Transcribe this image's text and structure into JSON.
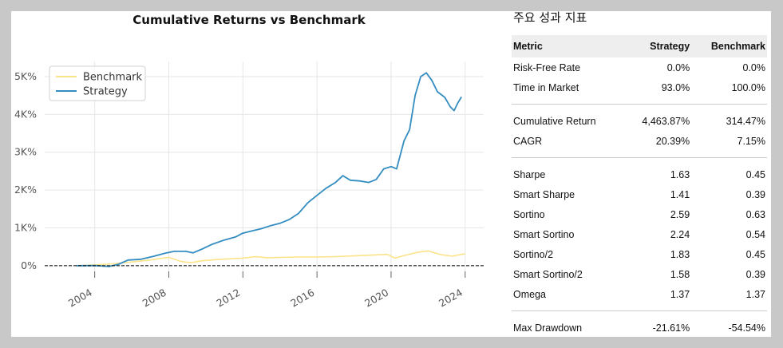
{
  "chart_data": {
    "type": "line",
    "title": "Cumulative Returns vs Benchmark",
    "xlabel": "",
    "ylabel": "",
    "x_ticks": [
      "2004",
      "2008",
      "2012",
      "2016",
      "2020",
      "2024"
    ],
    "y_ticks": [
      "0%",
      "1K%",
      "2K%",
      "3K%",
      "4K%",
      "5K%"
    ],
    "xlim": [
      2001.3,
      2025.0
    ],
    "ylim": [
      -150,
      5400
    ],
    "grid": true,
    "legend_position": "top-left",
    "series": [
      {
        "name": "Benchmark",
        "color": "#fce38a",
        "points": [
          [
            2003.0,
            0
          ],
          [
            2004.0,
            20
          ],
          [
            2005.0,
            50
          ],
          [
            2006.0,
            100
          ],
          [
            2007.0,
            150
          ],
          [
            2007.5,
            190
          ],
          [
            2008.0,
            220
          ],
          [
            2008.7,
            110
          ],
          [
            2009.2,
            80
          ],
          [
            2009.8,
            130
          ],
          [
            2010.5,
            160
          ],
          [
            2011.5,
            190
          ],
          [
            2012.0,
            200
          ],
          [
            2012.7,
            240
          ],
          [
            2013.3,
            210
          ],
          [
            2014.0,
            220
          ],
          [
            2015.0,
            230
          ],
          [
            2016.0,
            230
          ],
          [
            2017.0,
            240
          ],
          [
            2018.0,
            260
          ],
          [
            2019.0,
            280
          ],
          [
            2019.8,
            300
          ],
          [
            2020.2,
            200
          ],
          [
            2020.8,
            280
          ],
          [
            2021.5,
            360
          ],
          [
            2022.0,
            390
          ],
          [
            2022.7,
            290
          ],
          [
            2023.3,
            250
          ],
          [
            2023.8,
            300
          ],
          [
            2024.0,
            314
          ]
        ]
      },
      {
        "name": "Strategy",
        "color": "#348dc1",
        "points": [
          [
            2003.0,
            0
          ],
          [
            2004.0,
            5
          ],
          [
            2004.8,
            -20
          ],
          [
            2005.3,
            40
          ],
          [
            2005.8,
            150
          ],
          [
            2006.5,
            170
          ],
          [
            2007.2,
            250
          ],
          [
            2007.8,
            330
          ],
          [
            2008.3,
            380
          ],
          [
            2008.9,
            380
          ],
          [
            2009.3,
            340
          ],
          [
            2009.8,
            440
          ],
          [
            2010.3,
            560
          ],
          [
            2011.0,
            680
          ],
          [
            2011.6,
            760
          ],
          [
            2012.0,
            860
          ],
          [
            2012.5,
            920
          ],
          [
            2013.0,
            980
          ],
          [
            2013.5,
            1060
          ],
          [
            2014.0,
            1120
          ],
          [
            2014.5,
            1220
          ],
          [
            2015.0,
            1380
          ],
          [
            2015.5,
            1660
          ],
          [
            2016.0,
            1860
          ],
          [
            2016.5,
            2050
          ],
          [
            2017.0,
            2200
          ],
          [
            2017.4,
            2380
          ],
          [
            2017.8,
            2260
          ],
          [
            2018.3,
            2240
          ],
          [
            2018.8,
            2200
          ],
          [
            2019.2,
            2280
          ],
          [
            2019.6,
            2560
          ],
          [
            2020.0,
            2620
          ],
          [
            2020.3,
            2560
          ],
          [
            2020.7,
            3300
          ],
          [
            2021.0,
            3600
          ],
          [
            2021.3,
            4500
          ],
          [
            2021.6,
            5000
          ],
          [
            2021.9,
            5100
          ],
          [
            2022.2,
            4900
          ],
          [
            2022.5,
            4600
          ],
          [
            2022.9,
            4450
          ],
          [
            2023.2,
            4200
          ],
          [
            2023.4,
            4100
          ],
          [
            2023.6,
            4300
          ],
          [
            2023.8,
            4464
          ]
        ]
      }
    ]
  },
  "panel": {
    "title": "주요 성과 지표",
    "headers": {
      "metric": "Metric",
      "strategy": "Strategy",
      "benchmark": "Benchmark"
    },
    "groups": [
      [
        {
          "metric": "Risk-Free Rate",
          "strategy": "0.0%",
          "benchmark": "0.0%"
        },
        {
          "metric": "Time in Market",
          "strategy": "93.0%",
          "benchmark": "100.0%"
        }
      ],
      [
        {
          "metric": "Cumulative Return",
          "strategy": "4,463.87%",
          "benchmark": "314.47%"
        },
        {
          "metric": "CAGR",
          "strategy": "20.39%",
          "benchmark": "7.15%"
        }
      ],
      [
        {
          "metric": "Sharpe",
          "strategy": "1.63",
          "benchmark": "0.45"
        },
        {
          "metric": "Smart Sharpe",
          "strategy": "1.41",
          "benchmark": "0.39"
        },
        {
          "metric": "Sortino",
          "strategy": "2.59",
          "benchmark": "0.63"
        },
        {
          "metric": "Smart Sortino",
          "strategy": "2.24",
          "benchmark": "0.54"
        },
        {
          "metric": "Sortino/2",
          "strategy": "1.83",
          "benchmark": "0.45"
        },
        {
          "metric": "Smart Sortino/2",
          "strategy": "1.58",
          "benchmark": "0.39"
        },
        {
          "metric": "Omega",
          "strategy": "1.37",
          "benchmark": "1.37"
        }
      ],
      [
        {
          "metric": "Max Drawdown",
          "strategy": "-21.61%",
          "benchmark": "-54.54%"
        }
      ]
    ]
  }
}
